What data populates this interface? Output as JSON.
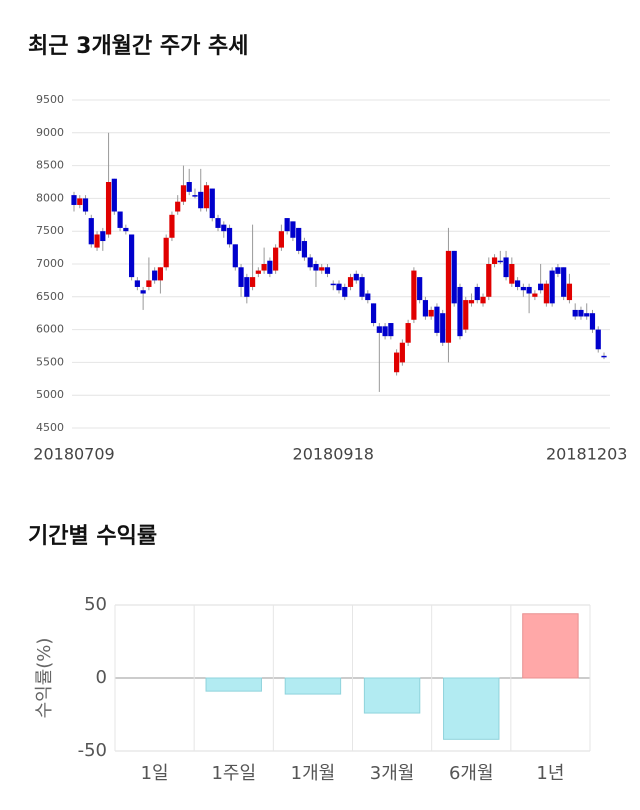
{
  "chart_data": [
    {
      "type": "candlestick",
      "title": "최근 3개월간 주가 추세",
      "categories": [
        "20180709",
        null,
        null,
        null,
        null,
        null,
        null,
        null,
        null,
        null,
        null,
        null,
        null,
        null,
        null,
        null,
        null,
        null,
        null,
        null,
        null,
        null,
        null,
        null,
        null,
        null,
        null,
        null,
        null,
        null,
        null,
        null,
        null,
        null,
        null,
        null,
        null,
        null,
        null,
        null,
        null,
        null,
        null,
        null,
        null,
        "20180918",
        null,
        null,
        null,
        null,
        null,
        null,
        null,
        null,
        null,
        null,
        null,
        null,
        null,
        null,
        null,
        null,
        null,
        null,
        null,
        null,
        null,
        null,
        null,
        null,
        null,
        null,
        null,
        null,
        null,
        null,
        null,
        null,
        null,
        null,
        null,
        null,
        null,
        null,
        null,
        null,
        null,
        null,
        null,
        "20181203",
        null,
        null,
        null
      ],
      "open": [
        8050,
        7900,
        8000,
        7700,
        7250,
        7500,
        7450,
        8300,
        7800,
        7550,
        7450,
        6750,
        6600,
        6650,
        6900,
        6750,
        6950,
        7400,
        7800,
        7950,
        8250,
        8050,
        8100,
        7850,
        8150,
        7700,
        7600,
        7550,
        7300,
        6950,
        6800,
        6650,
        6850,
        6900,
        7050,
        6900,
        7250,
        7700,
        7650,
        7550,
        7350,
        7100,
        7000,
        6900,
        6950,
        6700,
        6700,
        6650,
        6650,
        6850,
        6800,
        6550,
        6400,
        6050,
        6050,
        6100,
        5350,
        5500,
        5800,
        6150,
        6800,
        6450,
        6200,
        6350,
        6250,
        5800,
        7200,
        6650,
        6000,
        6400,
        6650,
        6400,
        6500,
        7000,
        7050,
        7100,
        6700,
        6750,
        6650,
        6650,
        6500,
        6700,
        6400,
        6900,
        6950,
        6950,
        6450,
        6300,
        6300,
        6250,
        6250,
        6000,
        5600
      ],
      "high": [
        8100,
        8050,
        8050,
        7750,
        7500,
        7550,
        9000,
        8300,
        7800,
        7600,
        7450,
        6800,
        6650,
        7100,
        6950,
        6950,
        7450,
        7800,
        8050,
        8500,
        8450,
        8150,
        8450,
        8250,
        8150,
        7750,
        7650,
        7600,
        7300,
        7000,
        6850,
        7600,
        6950,
        7250,
        7100,
        7300,
        7600,
        7700,
        7650,
        7550,
        7400,
        7150,
        7050,
        7000,
        7000,
        6750,
        6750,
        6700,
        6850,
        6900,
        6850,
        6600,
        6400,
        6100,
        6100,
        6100,
        5700,
        5850,
        6150,
        6950,
        6800,
        6500,
        6350,
        6400,
        6300,
        7550,
        7200,
        6700,
        6500,
        6550,
        6700,
        6550,
        7100,
        7150,
        7200,
        7200,
        7100,
        6800,
        6700,
        6700,
        6600,
        7000,
        6750,
        6950,
        7000,
        6950,
        6850,
        6400,
        6350,
        6400,
        6300,
        6050,
        5650
      ],
      "low": [
        7800,
        7850,
        7750,
        7250,
        7200,
        7200,
        7400,
        7750,
        7500,
        7450,
        6750,
        6600,
        6300,
        6600,
        6700,
        6550,
        6900,
        7350,
        7750,
        7900,
        8050,
        8000,
        7800,
        7800,
        7650,
        7500,
        7400,
        7250,
        6900,
        6500,
        6400,
        6600,
        6800,
        6850,
        6800,
        6850,
        7200,
        7450,
        7350,
        7150,
        7050,
        6900,
        6650,
        6850,
        6800,
        6600,
        6550,
        6450,
        6600,
        6700,
        6450,
        6400,
        6050,
        5050,
        5850,
        5850,
        5300,
        5450,
        5750,
        6100,
        6400,
        6150,
        6150,
        5900,
        5750,
        5500,
        6350,
        5850,
        5950,
        6350,
        6400,
        6350,
        6450,
        6950,
        7000,
        6750,
        6650,
        6600,
        6500,
        6250,
        6450,
        6550,
        6350,
        6350,
        6800,
        6450,
        6400,
        6150,
        6150,
        6150,
        5950,
        5650,
        5550
      ],
      "close": [
        7900,
        8000,
        7800,
        7300,
        7450,
        7350,
        8250,
        7800,
        7550,
        7500,
        6800,
        6650,
        6550,
        6750,
        6750,
        6950,
        7400,
        7750,
        7950,
        8200,
        8100,
        8050,
        7850,
        8200,
        7700,
        7550,
        7500,
        7300,
        6950,
        6650,
        6500,
        6800,
        6900,
        7000,
        6850,
        7250,
        7500,
        7500,
        7400,
        7200,
        7100,
        6950,
        6900,
        6950,
        6850,
        6700,
        6600,
        6500,
        6800,
        6750,
        6500,
        6450,
        6100,
        5950,
        5900,
        5900,
        5650,
        5800,
        6100,
        6900,
        6450,
        6200,
        6300,
        5950,
        5800,
        7200,
        6400,
        5900,
        6450,
        6450,
        6450,
        6500,
        7000,
        7100,
        7050,
        6800,
        7000,
        6650,
        6600,
        6550,
        6550,
        6600,
        6700,
        6400,
        6850,
        6500,
        6700,
        6200,
        6200,
        6200,
        6000,
        5700,
        5600
      ],
      "up_color": "#e00000",
      "down_color": "#0000cc",
      "ylim": [
        4500,
        9500
      ],
      "yticks": [
        4500,
        5000,
        5500,
        6000,
        6500,
        7000,
        7500,
        8000,
        8500,
        9000,
        9500
      ],
      "grid": true
    },
    {
      "type": "bar",
      "title": "기간별 수익률",
      "ylabel": "수익률(%)",
      "categories": [
        "1일",
        "1주일",
        "1개월",
        "3개월",
        "6개월",
        "1년"
      ],
      "values": [
        0,
        -9,
        -11,
        -24,
        -42,
        44
      ],
      "positive_color": "#ffa8a8",
      "negative_color": "#b2ebf2",
      "ylim": [
        -50,
        50
      ],
      "yticks": [
        -50,
        0,
        50
      ],
      "grid": true
    }
  ]
}
